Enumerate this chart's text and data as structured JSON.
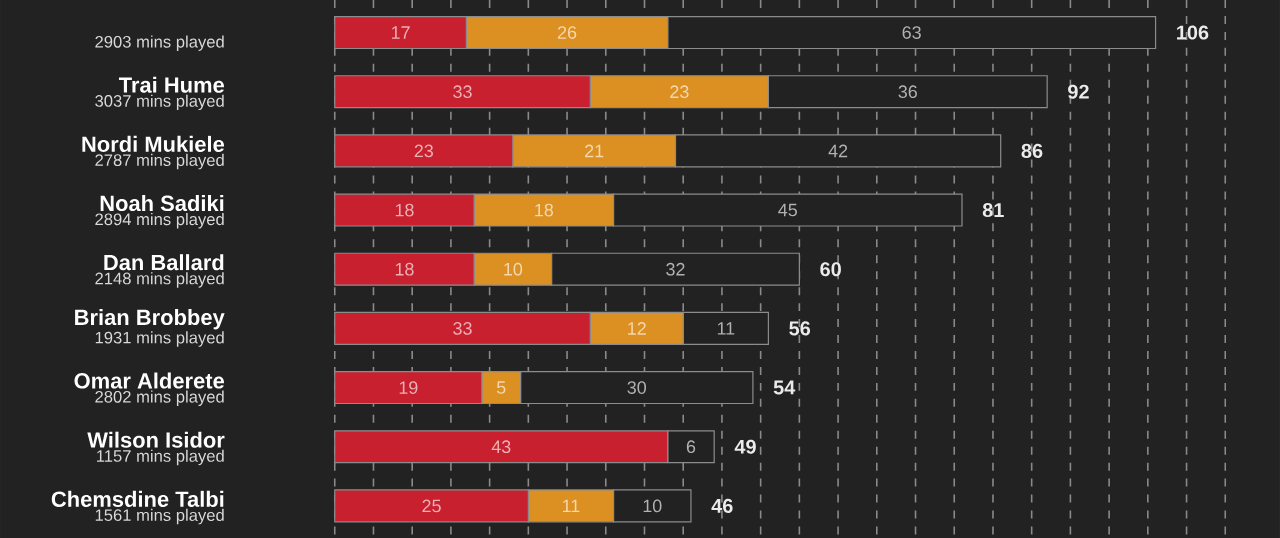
{
  "chart_data": {
    "type": "bar",
    "orientation": "horizontal",
    "stacked": true,
    "categories": [
      null,
      "Trai Hume",
      "Nordi Mukiele",
      "Noah Sadiki",
      "Dan Ballard",
      "Brian Brobbey",
      "Omar Alderete",
      "Wilson Isidor",
      "Chemsdine Talbi"
    ],
    "annotations": [
      "2903 mins played",
      "3037 mins played",
      "2787 mins played",
      "2894 mins played",
      "2148 mins played",
      "1931 mins played",
      "2802 mins played",
      "1157 mins played",
      "1561 mins played"
    ],
    "series": [
      {
        "color": "#c8202f",
        "values": [
          17,
          33,
          23,
          18,
          18,
          33,
          19,
          43,
          25
        ]
      },
      {
        "color": "#dc9021",
        "values": [
          26,
          23,
          21,
          18,
          10,
          12,
          5,
          null,
          11
        ]
      },
      {
        "color": "#222222",
        "values": [
          63,
          36,
          42,
          45,
          32,
          11,
          30,
          6,
          10
        ]
      }
    ],
    "totals": [
      "106",
      "92",
      "86",
      "81",
      "60",
      "56",
      "54",
      "49",
      "46"
    ],
    "data_labels": true,
    "grid": "x"
  }
}
